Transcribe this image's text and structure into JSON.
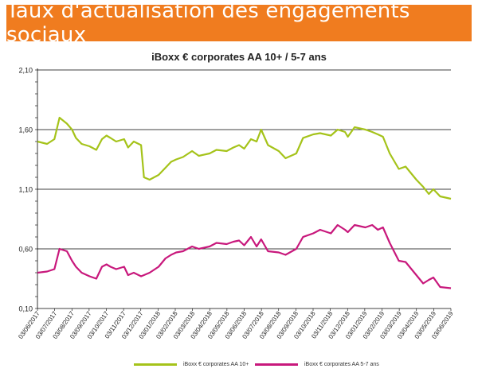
{
  "banner": {
    "title": "Taux d'actualisation des engagements sociaux",
    "color": "#f07c1f"
  },
  "chart_data": {
    "type": "line",
    "title": "iBoxx € corporates AA 10+ / 5-7 ans",
    "xlabel": "",
    "ylabel": "",
    "ylim": [
      0.1,
      2.1
    ],
    "yticks": [
      0.1,
      0.6,
      1.1,
      1.6,
      2.1
    ],
    "ytick_labels": [
      "0,10",
      "0,60",
      "1,10",
      "1,60",
      "2,10"
    ],
    "grid": true,
    "legend": "bottom",
    "xtick_labels": [
      "03/06/2017",
      "03/07/2017",
      "03/08/2017",
      "03/09/2017",
      "03/10/2017",
      "03/11/2017",
      "03/12/2017",
      "03/01/2018",
      "03/02/2018",
      "03/03/2018",
      "03/04/2018",
      "03/05/2018",
      "03/06/2018",
      "03/07/2018",
      "03/08/2018",
      "03/09/2018",
      "03/10/2018",
      "03/11/2018",
      "03/12/2018",
      "03/01/2019",
      "03/02/2019",
      "03/03/2019",
      "03/04/2019",
      "03/05/2019",
      "03/06/2019"
    ],
    "x": [
      "2017-06-03",
      "2017-06-20",
      "2017-07-03",
      "2017-07-12",
      "2017-07-25",
      "2017-08-03",
      "2017-08-10",
      "2017-08-20",
      "2017-09-03",
      "2017-09-15",
      "2017-09-25",
      "2017-10-03",
      "2017-10-10",
      "2017-10-20",
      "2017-11-03",
      "2017-11-10",
      "2017-11-20",
      "2017-12-03",
      "2017-12-08",
      "2017-12-18",
      "2018-01-03",
      "2018-01-15",
      "2018-01-25",
      "2018-02-03",
      "2018-02-15",
      "2018-03-03",
      "2018-03-15",
      "2018-04-03",
      "2018-04-15",
      "2018-05-03",
      "2018-05-15",
      "2018-05-25",
      "2018-06-03",
      "2018-06-15",
      "2018-06-25",
      "2018-07-03",
      "2018-07-15",
      "2018-08-03",
      "2018-08-15",
      "2018-09-03",
      "2018-09-15",
      "2018-10-03",
      "2018-10-15",
      "2018-11-03",
      "2018-11-15",
      "2018-11-28",
      "2018-12-03",
      "2018-12-15",
      "2019-01-03",
      "2019-01-15",
      "2019-01-25",
      "2019-02-03",
      "2019-02-15",
      "2019-03-03",
      "2019-03-15",
      "2019-04-03",
      "2019-04-15",
      "2019-04-25",
      "2019-05-03",
      "2019-05-15",
      "2019-06-03"
    ],
    "series": [
      {
        "name": "iBoxx € corporates AA 10+",
        "color": "#a5c31a",
        "values": [
          1.5,
          1.48,
          1.52,
          1.7,
          1.65,
          1.6,
          1.53,
          1.48,
          1.46,
          1.43,
          1.52,
          1.55,
          1.53,
          1.5,
          1.52,
          1.45,
          1.5,
          1.47,
          1.2,
          1.18,
          1.22,
          1.28,
          1.33,
          1.35,
          1.37,
          1.42,
          1.38,
          1.4,
          1.43,
          1.42,
          1.45,
          1.47,
          1.44,
          1.52,
          1.5,
          1.6,
          1.47,
          1.42,
          1.36,
          1.4,
          1.53,
          1.56,
          1.57,
          1.55,
          1.6,
          1.58,
          1.54,
          1.62,
          1.6,
          1.58,
          1.56,
          1.54,
          1.4,
          1.27,
          1.29,
          1.18,
          1.12,
          1.06,
          1.1,
          1.04,
          1.02
        ]
      },
      {
        "name": "iBoxx € corporates AA 5-7 ans",
        "color": "#c8187c",
        "values": [
          0.4,
          0.41,
          0.43,
          0.6,
          0.58,
          0.5,
          0.45,
          0.4,
          0.37,
          0.35,
          0.45,
          0.47,
          0.45,
          0.43,
          0.45,
          0.38,
          0.4,
          0.37,
          0.38,
          0.4,
          0.45,
          0.52,
          0.55,
          0.57,
          0.58,
          0.62,
          0.6,
          0.62,
          0.65,
          0.64,
          0.66,
          0.67,
          0.63,
          0.7,
          0.62,
          0.68,
          0.58,
          0.57,
          0.55,
          0.6,
          0.7,
          0.73,
          0.76,
          0.73,
          0.8,
          0.76,
          0.74,
          0.8,
          0.78,
          0.8,
          0.76,
          0.78,
          0.65,
          0.5,
          0.49,
          0.38,
          0.31,
          0.34,
          0.36,
          0.28,
          0.27
        ]
      }
    ]
  }
}
